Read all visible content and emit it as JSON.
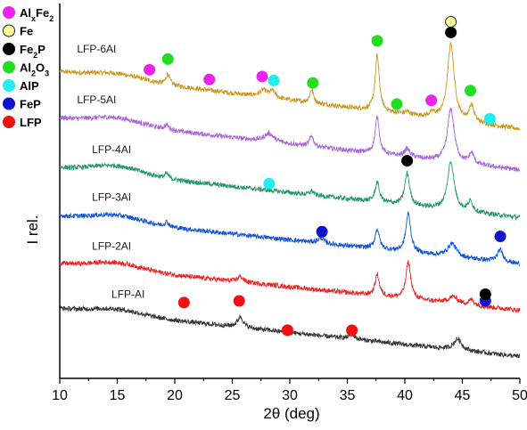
{
  "chart_data": {
    "type": "line",
    "xlabel": "2θ (deg)",
    "ylabel": "I rel.",
    "xlim": [
      10,
      50
    ],
    "xticks": [
      10,
      15,
      20,
      25,
      30,
      35,
      40,
      45,
      50
    ],
    "grid": false,
    "legend_placement": "top-left",
    "legend": [
      {
        "key": "alxfe2",
        "parts": [
          [
            "Al",
            ""
          ],
          [
            "x",
            "sub"
          ],
          [
            "Fe",
            ""
          ],
          [
            "2",
            "sub"
          ]
        ],
        "text": "AlxFe2",
        "color": "#ee22ee",
        "border": "#ee22ee"
      },
      {
        "key": "fe",
        "parts": [
          [
            "Fe",
            ""
          ]
        ],
        "text": "Fe",
        "color": "#ffff99",
        "border": "#222222"
      },
      {
        "key": "fe2p",
        "parts": [
          [
            "Fe",
            ""
          ],
          [
            "2",
            "sub"
          ],
          [
            "P",
            ""
          ]
        ],
        "text": "Fe2P",
        "color": "#000000",
        "border": "#000000"
      },
      {
        "key": "al2o3",
        "parts": [
          [
            "Al",
            ""
          ],
          [
            "2",
            "sub"
          ],
          [
            "O",
            ""
          ],
          [
            "3",
            "sub"
          ]
        ],
        "text": "Al2O3",
        "color": "#22dd22",
        "border": "#22dd22"
      },
      {
        "key": "alp",
        "parts": [
          [
            "AlP",
            ""
          ]
        ],
        "text": "AlP",
        "color": "#22eeee",
        "border": "#22eeee"
      },
      {
        "key": "fep",
        "parts": [
          [
            "FeP",
            ""
          ]
        ],
        "text": "FeP",
        "color": "#1111cc",
        "border": "#1111cc"
      },
      {
        "key": "lfp",
        "parts": [
          [
            "LFP",
            ""
          ]
        ],
        "text": "LFP",
        "color": "#ee1111",
        "border": "#ee1111"
      }
    ],
    "series": [
      {
        "name": "LFP-AI",
        "color": "#333333",
        "offset": 0,
        "start": 0.82,
        "end": 0.1,
        "bump": {
          "center": 15,
          "width": 3,
          "height": 0.08
        },
        "peaks": [
          [
            25.7,
            0.16,
            0.3
          ],
          [
            35.4,
            0.07,
            0.3
          ],
          [
            44.6,
            0.17,
            0.4
          ]
        ],
        "noise": 0.035
      },
      {
        "name": "LFP-2AI",
        "color": "#ee2222",
        "offset": 1,
        "start": 0.8,
        "end": 0.1,
        "bump": {
          "center": 15,
          "width": 3,
          "height": 0.1
        },
        "peaks": [
          [
            25.7,
            0.08,
            0.3
          ],
          [
            37.6,
            0.32,
            0.22
          ],
          [
            40.3,
            0.55,
            0.25
          ],
          [
            44.2,
            0.1,
            0.5
          ],
          [
            45.8,
            0.08,
            0.25
          ]
        ],
        "noise": 0.035
      },
      {
        "name": "LFP-3AI",
        "color": "#1155dd",
        "offset": 2,
        "start": 0.82,
        "end": 0.1,
        "bump": {
          "center": 15,
          "width": 3,
          "height": 0.1
        },
        "peaks": [
          [
            19.3,
            0.07,
            0.2
          ],
          [
            32.7,
            0.08,
            0.3
          ],
          [
            37.6,
            0.3,
            0.22
          ],
          [
            40.3,
            0.58,
            0.25
          ],
          [
            44.1,
            0.2,
            0.45
          ],
          [
            48.3,
            0.18,
            0.3
          ]
        ],
        "noise": 0.035
      },
      {
        "name": "LFP-4AI",
        "color": "#229966",
        "offset": 3,
        "start": 0.85,
        "end": 0.1,
        "bump": {
          "center": 15,
          "width": 3,
          "height": 0.12
        },
        "peaks": [
          [
            19.3,
            0.07,
            0.2
          ],
          [
            31.9,
            0.06,
            0.2
          ],
          [
            37.6,
            0.3,
            0.22
          ],
          [
            40.2,
            0.48,
            0.25
          ],
          [
            44.0,
            0.72,
            0.35
          ],
          [
            45.7,
            0.15,
            0.25
          ]
        ],
        "noise": 0.035
      },
      {
        "name": "LFP-5AI",
        "color": "#aa66dd",
        "offset": 4,
        "start": 0.9,
        "end": 0.12,
        "bump": {
          "center": 15,
          "width": 3,
          "height": 0.1
        },
        "peaks": [
          [
            19.3,
            0.07,
            0.2
          ],
          [
            28.2,
            0.12,
            0.5
          ],
          [
            31.9,
            0.16,
            0.2
          ],
          [
            37.6,
            0.55,
            0.22
          ],
          [
            40.2,
            0.12,
            0.3
          ],
          [
            44.0,
            0.8,
            0.35
          ],
          [
            45.8,
            0.16,
            0.25
          ]
        ],
        "noise": 0.035
      },
      {
        "name": "LFP-6AI",
        "color": "#cc9922",
        "offset": 5,
        "start": 0.9,
        "end": 0.04,
        "bump": {
          "center": 15,
          "width": 3,
          "height": 0.08
        },
        "peaks": [
          [
            19.4,
            0.16,
            0.2
          ],
          [
            27.7,
            0.1,
            0.4
          ],
          [
            28.5,
            0.1,
            0.3
          ],
          [
            31.9,
            0.2,
            0.2
          ],
          [
            37.6,
            0.83,
            0.22
          ],
          [
            40.2,
            0.04,
            0.3
          ],
          [
            42.4,
            0.06,
            0.3
          ],
          [
            44.0,
            1.15,
            0.35
          ],
          [
            45.8,
            0.25,
            0.25
          ]
        ],
        "noise": 0.035
      }
    ],
    "markers": [
      {
        "phase": "lfp",
        "x": 20.8,
        "series": 0,
        "above": 0.28
      },
      {
        "phase": "lfp",
        "x": 25.6,
        "series": 0,
        "above": 0.25
      },
      {
        "phase": "lfp",
        "x": 29.8,
        "series": 0,
        "above": 0.03
      },
      {
        "phase": "lfp",
        "x": 35.4,
        "series": 0,
        "above": 0.06
      },
      {
        "phase": "fep",
        "x": 32.8,
        "series": 2,
        "above": 0.1
      },
      {
        "phase": "fep",
        "x": 48.3,
        "series": 2,
        "above": 0.2
      },
      {
        "phase": "fep",
        "x": 47.0,
        "series": 1,
        "above": 0.08
      },
      {
        "phase": "fe2p",
        "x": 47.0,
        "series": 1,
        "above": 0.18
      },
      {
        "phase": "fe2p",
        "x": 40.2,
        "series": 3,
        "above": 0.18
      },
      {
        "phase": "alp",
        "x": 28.2,
        "series": 3,
        "above": 0.1
      },
      {
        "phase": "alp",
        "x": 28.6,
        "series": 5,
        "above": 0.16
      },
      {
        "phase": "alp",
        "x": 47.4,
        "series": 5,
        "above": 0.08
      },
      {
        "phase": "al2o3",
        "x": 32.0,
        "series": 5,
        "above": 0.14
      },
      {
        "phase": "al2o3",
        "x": 39.3,
        "series": 5,
        "above": 0.12
      },
      {
        "phase": "al2o3",
        "x": 45.7,
        "series": 5,
        "above": 0.22
      },
      {
        "phase": "al2o3",
        "x": 37.6,
        "series": 5,
        "above": 0.22
      },
      {
        "phase": "al2o3",
        "x": 19.4,
        "series": 5,
        "above": 0.22
      },
      {
        "phase": "alxfe2",
        "x": 17.8,
        "series": 5,
        "above": 0.16
      },
      {
        "phase": "alxfe2",
        "x": 23.0,
        "series": 5,
        "above": 0.16
      },
      {
        "phase": "alxfe2",
        "x": 27.6,
        "series": 5,
        "above": 0.2
      },
      {
        "phase": "alxfe2",
        "x": 42.3,
        "series": 5,
        "above": 0.16
      },
      {
        "phase": "fe2p",
        "x": 44.0,
        "series": 5,
        "above": 0.16
      },
      {
        "phase": "fe",
        "x": 44.0,
        "series": 5,
        "above": 0.32
      }
    ]
  }
}
